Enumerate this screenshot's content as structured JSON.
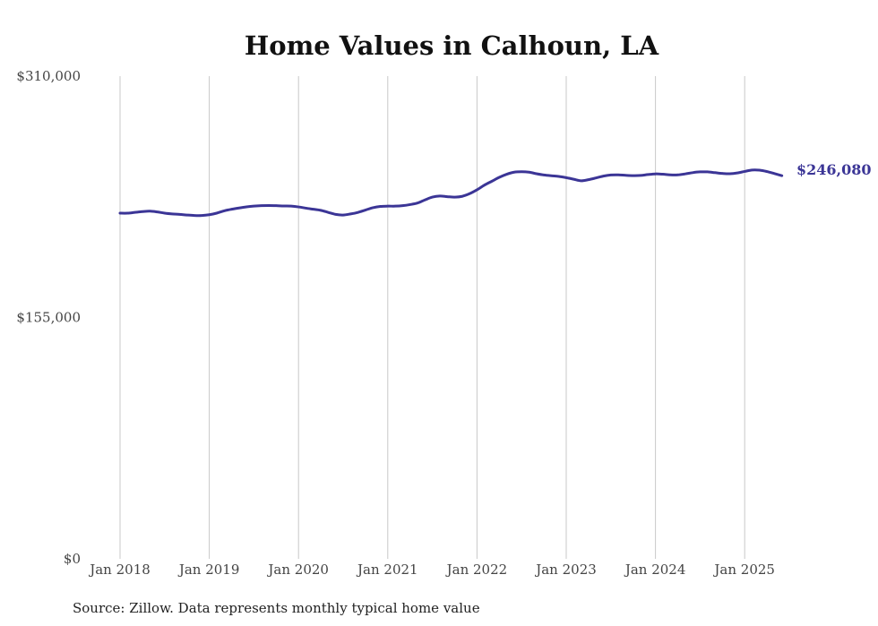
{
  "chart_data": {
    "type": "line",
    "title": "Home Values in Calhoun, LA",
    "xlabel": "",
    "ylabel": "",
    "ylim": [
      0,
      310000
    ],
    "y_ticks": [
      "$0",
      "$155,000",
      "$310,000"
    ],
    "x_ticks": [
      "Jan 2018",
      "Jan 2019",
      "Jan 2020",
      "Jan 2021",
      "Jan 2022",
      "Jan 2023",
      "Jan 2024",
      "Jan 2025"
    ],
    "grid": "vertical",
    "line_color": "#3b3596",
    "end_label": "$246,080",
    "source": "Source: Zillow. Data represents monthly typical home value",
    "series": [
      {
        "points": [
          [
            "2018-01",
            222000
          ],
          [
            "2018-02",
            222000
          ],
          [
            "2018-03",
            222500
          ],
          [
            "2018-04",
            223000
          ],
          [
            "2018-05",
            223300
          ],
          [
            "2018-06",
            222800
          ],
          [
            "2018-07",
            222000
          ],
          [
            "2018-08",
            221500
          ],
          [
            "2018-09",
            221200
          ],
          [
            "2018-10",
            220800
          ],
          [
            "2018-11",
            220500
          ],
          [
            "2018-12",
            220500
          ],
          [
            "2019-01",
            221000
          ],
          [
            "2019-02",
            222000
          ],
          [
            "2019-03",
            223500
          ],
          [
            "2019-04",
            224500
          ],
          [
            "2019-05",
            225300
          ],
          [
            "2019-06",
            226000
          ],
          [
            "2019-07",
            226500
          ],
          [
            "2019-08",
            226800
          ],
          [
            "2019-09",
            226900
          ],
          [
            "2019-10",
            226800
          ],
          [
            "2019-11",
            226600
          ],
          [
            "2019-12",
            226500
          ],
          [
            "2020-01",
            226000
          ],
          [
            "2020-02",
            225200
          ],
          [
            "2020-03",
            224500
          ],
          [
            "2020-04",
            223800
          ],
          [
            "2020-05",
            222500
          ],
          [
            "2020-06",
            221200
          ],
          [
            "2020-07",
            220800
          ],
          [
            "2020-08",
            221500
          ],
          [
            "2020-09",
            222500
          ],
          [
            "2020-10",
            224000
          ],
          [
            "2020-11",
            225500
          ],
          [
            "2020-12",
            226300
          ],
          [
            "2021-01",
            226500
          ],
          [
            "2021-02",
            226500
          ],
          [
            "2021-03",
            226800
          ],
          [
            "2021-04",
            227500
          ],
          [
            "2021-05",
            228500
          ],
          [
            "2021-06",
            230500
          ],
          [
            "2021-07",
            232300
          ],
          [
            "2021-08",
            233000
          ],
          [
            "2021-09",
            232600
          ],
          [
            "2021-10",
            232300
          ],
          [
            "2021-11",
            232800
          ],
          [
            "2021-12",
            234500
          ],
          [
            "2022-01",
            237000
          ],
          [
            "2022-02",
            240000
          ],
          [
            "2022-03",
            242500
          ],
          [
            "2022-04",
            245000
          ],
          [
            "2022-05",
            247000
          ],
          [
            "2022-06",
            248300
          ],
          [
            "2022-07",
            248600
          ],
          [
            "2022-08",
            248300
          ],
          [
            "2022-09",
            247300
          ],
          [
            "2022-10",
            246500
          ],
          [
            "2022-11",
            246000
          ],
          [
            "2022-12",
            245600
          ],
          [
            "2023-01",
            244800
          ],
          [
            "2023-02",
            243800
          ],
          [
            "2023-03",
            242800
          ],
          [
            "2023-04",
            243500
          ],
          [
            "2023-05",
            244600
          ],
          [
            "2023-06",
            245800
          ],
          [
            "2023-07",
            246500
          ],
          [
            "2023-08",
            246600
          ],
          [
            "2023-09",
            246300
          ],
          [
            "2023-10",
            246100
          ],
          [
            "2023-11",
            246200
          ],
          [
            "2023-12",
            246800
          ],
          [
            "2024-01",
            247200
          ],
          [
            "2024-02",
            247000
          ],
          [
            "2024-03",
            246600
          ],
          [
            "2024-04",
            246600
          ],
          [
            "2024-05",
            247200
          ],
          [
            "2024-06",
            248000
          ],
          [
            "2024-07",
            248500
          ],
          [
            "2024-08",
            248500
          ],
          [
            "2024-09",
            248000
          ],
          [
            "2024-10",
            247500
          ],
          [
            "2024-11",
            247300
          ],
          [
            "2024-12",
            247800
          ],
          [
            "2025-01",
            248800
          ],
          [
            "2025-02",
            249700
          ],
          [
            "2025-03",
            249600
          ],
          [
            "2025-04",
            248700
          ],
          [
            "2025-05",
            247400
          ],
          [
            "2025-06",
            246080
          ]
        ]
      }
    ]
  }
}
